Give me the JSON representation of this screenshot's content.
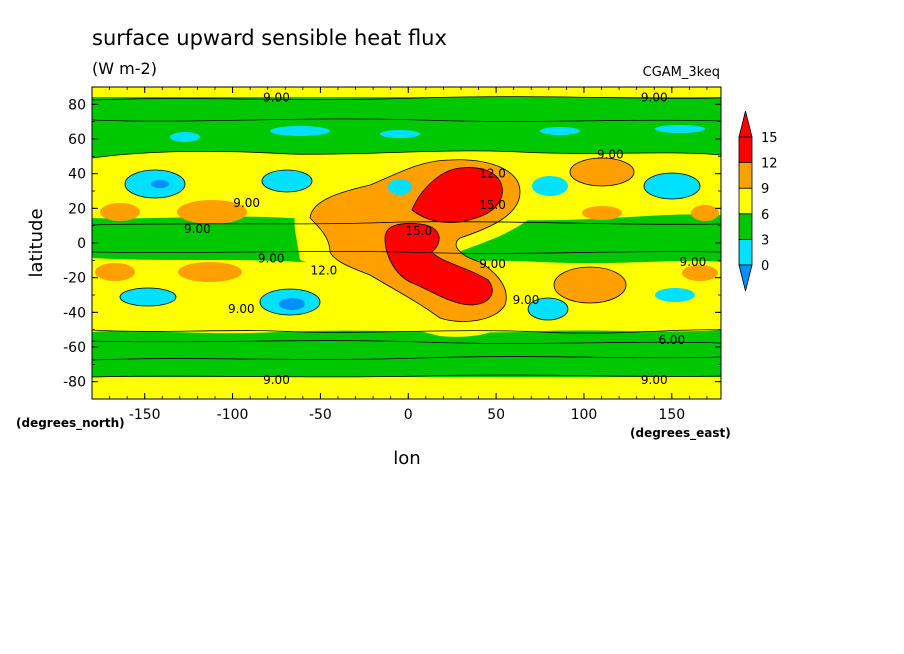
{
  "chart_data": {
    "type": "heatmap",
    "title": "surface upward sensible heat flux",
    "units": "(W m-2)",
    "dataset": "CGAM_3keq",
    "xlabel": "lon",
    "ylabel": "latitude",
    "x_units": "(degrees_east)",
    "y_units": "(degrees_north)",
    "xlim": [
      -180,
      178
    ],
    "ylim": [
      -90,
      90
    ],
    "x_ticks": [
      -150,
      -100,
      -50,
      0,
      50,
      100,
      150
    ],
    "y_ticks": [
      80,
      60,
      40,
      20,
      0,
      -20,
      -40,
      -60,
      -80
    ],
    "x_tick_labels": [
      "-150",
      "-100",
      "-50",
      "0",
      "50",
      "100",
      "150"
    ],
    "y_tick_labels": [
      "80",
      "60",
      "40",
      "20",
      "0",
      "-20",
      "-40",
      "-60",
      "-80"
    ],
    "colorbar": {
      "levels": [
        0,
        3,
        6,
        9,
        12,
        15
      ],
      "labels": [
        "0",
        "3",
        "6",
        "9",
        "12",
        "15"
      ],
      "colors": [
        "#0090ff",
        "#00e0ff",
        "#00c800",
        "#ffff00",
        "#ffa000",
        "#ff0000"
      ],
      "extend": "both"
    },
    "contour_labels": [
      {
        "text": "9.00",
        "lon": -75,
        "lat": 84
      },
      {
        "text": "9.00",
        "lon": 140,
        "lat": 84
      },
      {
        "text": "9.00",
        "lon": 115,
        "lat": 51
      },
      {
        "text": "12.0",
        "lon": 48,
        "lat": 40
      },
      {
        "text": "15.0",
        "lon": 48,
        "lat": 22
      },
      {
        "text": "9.00",
        "lon": -92,
        "lat": 23
      },
      {
        "text": "9.00",
        "lon": -120,
        "lat": 8
      },
      {
        "text": "15.0",
        "lon": 6,
        "lat": 7
      },
      {
        "text": "9.00",
        "lon": -78,
        "lat": -9
      },
      {
        "text": "12.0",
        "lon": -48,
        "lat": -16
      },
      {
        "text": "9.00",
        "lon": 48,
        "lat": -12
      },
      {
        "text": "9.00",
        "lon": 162,
        "lat": -11
      },
      {
        "text": "9.00",
        "lon": -95,
        "lat": -38
      },
      {
        "text": "9.00",
        "lon": 67,
        "lat": -33
      },
      {
        "text": "6.00",
        "lon": 150,
        "lat": -56
      },
      {
        "text": "9.00",
        "lon": -75,
        "lat": -79
      },
      {
        "text": "9.00",
        "lon": 140,
        "lat": -79
      }
    ]
  }
}
